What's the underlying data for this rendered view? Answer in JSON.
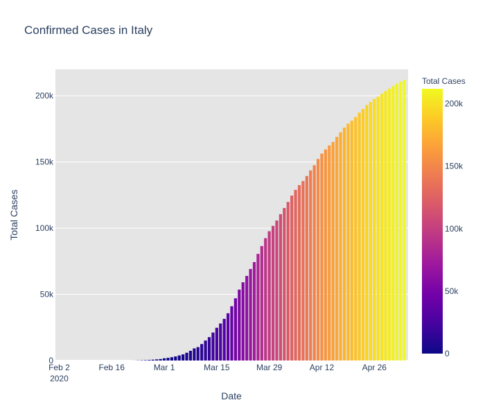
{
  "chart_data": {
    "type": "bar",
    "title": "Confirmed Cases in Italy",
    "xlabel": "Date",
    "ylabel": "Total Cases",
    "colorbar_title": "Total Cases",
    "x_start": "2020-02-01",
    "x_end": "2020-05-05",
    "x_ticks": [
      "2020-02-02",
      "2020-02-16",
      "2020-03-01",
      "2020-03-15",
      "2020-03-29",
      "2020-04-12",
      "2020-04-26"
    ],
    "x_tick_labels": [
      "Feb 2",
      "Feb 16",
      "Mar 1",
      "Mar 15",
      "Mar 29",
      "Apr 12",
      "Apr 26"
    ],
    "x_tick_year": "2020",
    "ylim": [
      0,
      220000
    ],
    "y_ticks": [
      0,
      50000,
      100000,
      150000,
      200000
    ],
    "y_tick_labels": [
      "0",
      "50k",
      "100k",
      "150k",
      "200k"
    ],
    "colorbar_ticks": [
      0,
      50000,
      100000,
      150000,
      200000
    ],
    "colorbar_tick_labels": [
      "0",
      "50k",
      "100k",
      "150k",
      "200k"
    ],
    "colorscale": [
      "#0d0887",
      "#46039f",
      "#7201a8",
      "#9c179e",
      "#bd3786",
      "#d8576b",
      "#ed7953",
      "#fb9f3a",
      "#fdca26",
      "#f0f921"
    ],
    "plot_bg": "#e5e5e5",
    "grid": true,
    "dates": [
      "2020-01-31",
      "2020-02-01",
      "2020-02-02",
      "2020-02-03",
      "2020-02-04",
      "2020-02-05",
      "2020-02-06",
      "2020-02-07",
      "2020-02-08",
      "2020-02-09",
      "2020-02-10",
      "2020-02-11",
      "2020-02-12",
      "2020-02-13",
      "2020-02-14",
      "2020-02-15",
      "2020-02-16",
      "2020-02-17",
      "2020-02-18",
      "2020-02-19",
      "2020-02-20",
      "2020-02-21",
      "2020-02-22",
      "2020-02-23",
      "2020-02-24",
      "2020-02-25",
      "2020-02-26",
      "2020-02-27",
      "2020-02-28",
      "2020-02-29",
      "2020-03-01",
      "2020-03-02",
      "2020-03-03",
      "2020-03-04",
      "2020-03-05",
      "2020-03-06",
      "2020-03-07",
      "2020-03-08",
      "2020-03-09",
      "2020-03-10",
      "2020-03-11",
      "2020-03-12",
      "2020-03-13",
      "2020-03-14",
      "2020-03-15",
      "2020-03-16",
      "2020-03-17",
      "2020-03-18",
      "2020-03-19",
      "2020-03-20",
      "2020-03-21",
      "2020-03-22",
      "2020-03-23",
      "2020-03-24",
      "2020-03-25",
      "2020-03-26",
      "2020-03-27",
      "2020-03-28",
      "2020-03-29",
      "2020-03-30",
      "2020-03-31",
      "2020-04-01",
      "2020-04-02",
      "2020-04-03",
      "2020-04-04",
      "2020-04-05",
      "2020-04-06",
      "2020-04-07",
      "2020-04-08",
      "2020-04-09",
      "2020-04-10",
      "2020-04-11",
      "2020-04-12",
      "2020-04-13",
      "2020-04-14",
      "2020-04-15",
      "2020-04-16",
      "2020-04-17",
      "2020-04-18",
      "2020-04-19",
      "2020-04-20",
      "2020-04-21",
      "2020-04-22",
      "2020-04-23",
      "2020-04-24",
      "2020-04-25",
      "2020-04-26",
      "2020-04-27",
      "2020-04-28",
      "2020-04-29",
      "2020-04-30",
      "2020-05-01",
      "2020-05-02",
      "2020-05-03",
      "2020-05-04"
    ],
    "values": [
      2,
      2,
      2,
      2,
      2,
      2,
      2,
      3,
      3,
      3,
      3,
      3,
      3,
      3,
      3,
      3,
      3,
      3,
      3,
      3,
      3,
      20,
      62,
      155,
      229,
      322,
      453,
      655,
      888,
      1128,
      1694,
      2036,
      2502,
      3089,
      3858,
      4636,
      5883,
      7375,
      9172,
      10149,
      12462,
      15113,
      17660,
      21157,
      24747,
      27980,
      31506,
      35713,
      41035,
      47021,
      53578,
      59138,
      63927,
      69176,
      74386,
      80589,
      86498,
      92472,
      97689,
      101739,
      105792,
      110574,
      115242,
      119827,
      124632,
      128948,
      132547,
      135586,
      139422,
      143626,
      147577,
      152271,
      156363,
      159516,
      162488,
      165155,
      168941,
      172434,
      175925,
      178972,
      181228,
      183957,
      187327,
      189973,
      192994,
      195351,
      197675,
      199414,
      201505,
      203591,
      205463,
      207428,
      209328,
      210717,
      211938
    ]
  }
}
